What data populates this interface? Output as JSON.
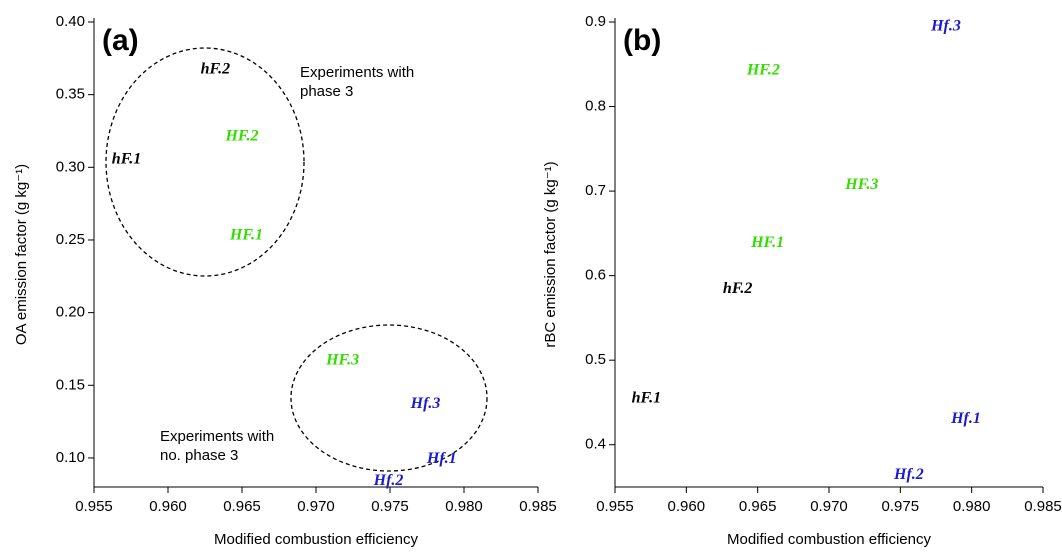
{
  "chart_data": [
    {
      "type": "scatter",
      "panel_label": "(a)",
      "xlabel": "Modified combustion efficiency",
      "ylabel": "OA emission factor (g kg⁻¹)",
      "annotations": [
        [
          "Experiments with",
          "phase 3"
        ],
        [
          "Experiments with",
          "no. phase 3"
        ]
      ],
      "point_labels": [
        "hF.1",
        "hF.2",
        "HF.2",
        "HF.1",
        "HF.3",
        "Hf.3",
        "Hf.1",
        "Hf.2"
      ],
      "colors": [
        "#000000",
        "#000000",
        "#33dd00",
        "#33dd00",
        "#33dd00",
        "#1a1acc",
        "#1a1acc",
        "#1a1acc"
      ],
      "x": [
        0.9572,
        0.9632,
        0.965,
        0.9653,
        0.9718,
        0.9774,
        0.9785,
        0.9749
      ],
      "values": [
        0.305,
        0.367,
        0.321,
        0.253,
        0.167,
        0.137,
        0.099,
        0.084
      ],
      "xlim": [
        0.955,
        0.985
      ],
      "ylim": [
        0.08,
        0.4
      ],
      "xticks": [
        0.955,
        {
          "value": 0.96,
          "label": "0.960"
        },
        0.965,
        {
          "value": 0.97,
          "label": "0.970"
        },
        0.975,
        {
          "value": 0.98,
          "label": "0.980"
        },
        0.985
      ],
      "yticks": [
        {
          "value": 0.1,
          "label": "0.10"
        },
        0.15,
        {
          "value": 0.2,
          "label": "0.20"
        },
        0.25,
        {
          "value": 0.3,
          "label": "0.30"
        },
        0.35,
        {
          "value": 0.4,
          "label": "0.40"
        }
      ]
    },
    {
      "type": "scatter",
      "panel_label": "(b)",
      "xlabel": "Modified combustion efficiency",
      "ylabel": "rBC emission factor (g kg⁻¹)",
      "point_labels": [
        "Hf.3",
        "HF.2",
        "HF.3",
        "HF.1",
        "hF.2",
        "hF.1",
        "Hf.1",
        "Hf.2"
      ],
      "colors": [
        "#1a1acc",
        "#33dd00",
        "#33dd00",
        "#33dd00",
        "#000000",
        "#000000",
        "#1a1acc",
        "#1a1acc"
      ],
      "x": [
        0.9782,
        0.9654,
        0.9723,
        0.9657,
        0.9636,
        0.9572,
        0.9796,
        0.9756
      ],
      "values": [
        0.894,
        0.842,
        0.707,
        0.638,
        0.584,
        0.454,
        0.43,
        0.364
      ],
      "xlim": [
        0.955,
        0.985
      ],
      "ylim": [
        0.35,
        0.9
      ],
      "xticks": [
        0.955,
        {
          "value": 0.96,
          "label": "0.960"
        },
        0.965,
        {
          "value": 0.97,
          "label": "0.970"
        },
        0.975,
        {
          "value": 0.98,
          "label": "0.980"
        },
        0.985
      ],
      "yticks": [
        0.4,
        0.5,
        0.6,
        0.7,
        0.8,
        0.9
      ]
    }
  ]
}
